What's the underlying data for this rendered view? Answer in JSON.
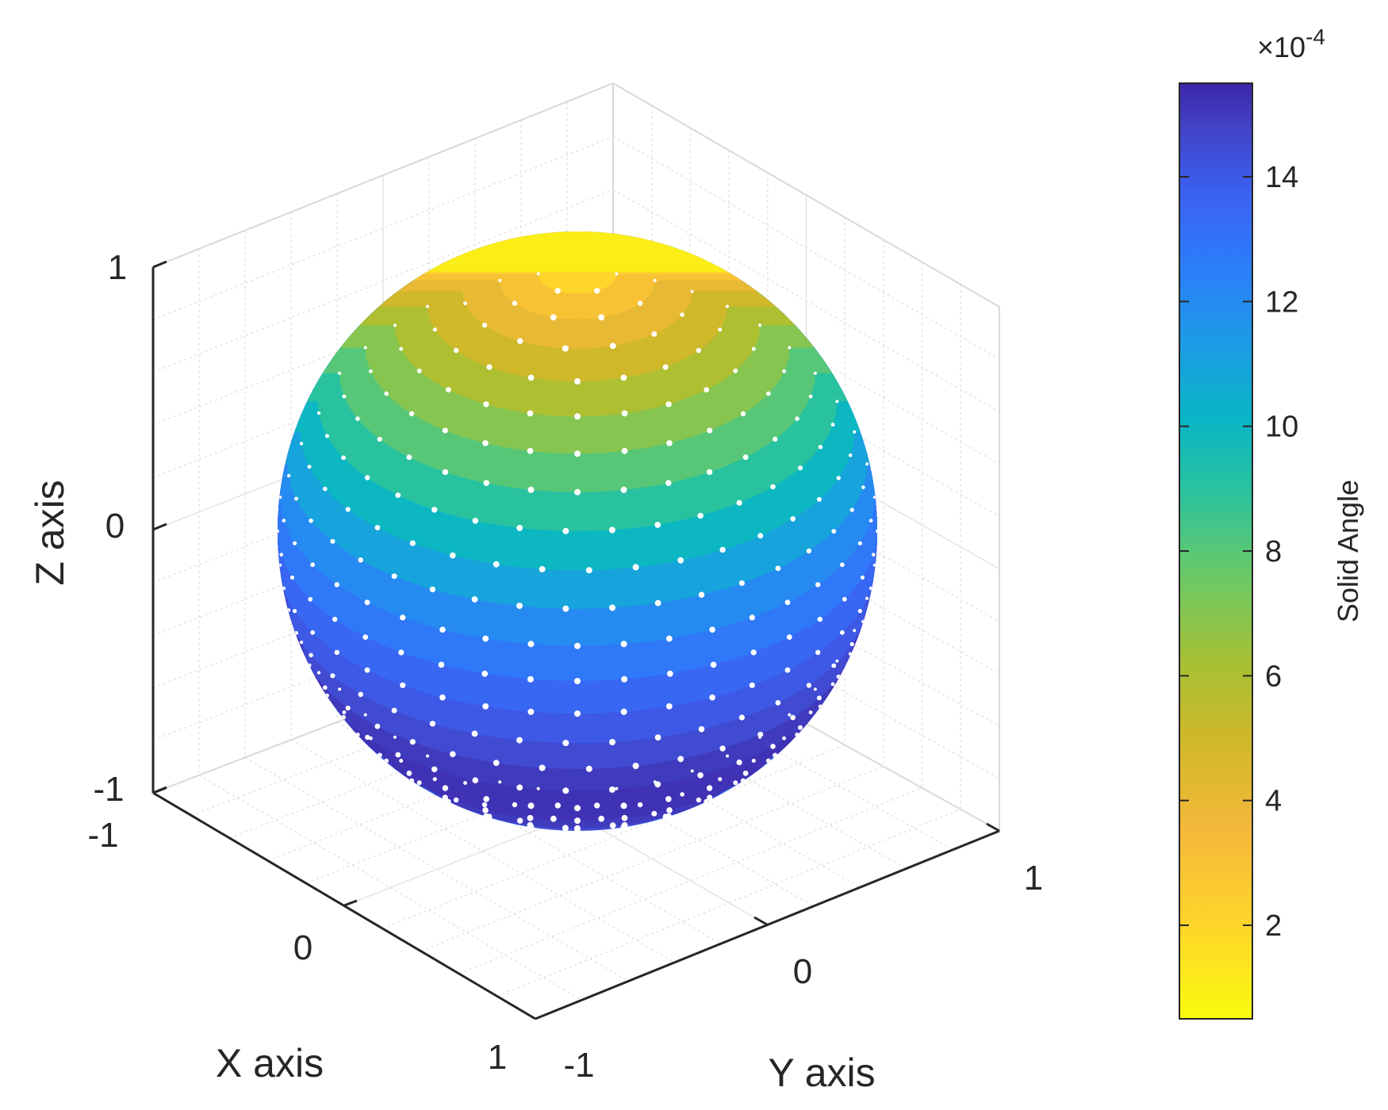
{
  "chart_data": {
    "type": "surface",
    "plot_kind": "3d sphere colored by solid angle, with white sample points",
    "view": "isometric 3D box",
    "grid": true,
    "axes": {
      "x": {
        "label": "X axis",
        "range": [
          -1,
          1
        ],
        "ticks": [
          "-1",
          "0",
          "1"
        ]
      },
      "y": {
        "label": "Y axis",
        "range": [
          -1,
          1
        ],
        "ticks": [
          "-1",
          "0",
          "1"
        ]
      },
      "z": {
        "label": "Z axis",
        "range": [
          -1,
          1
        ],
        "ticks": [
          "-1",
          "0",
          "1"
        ]
      }
    },
    "colorbar": {
      "label": "Solid Angle",
      "exponent_label": "×10",
      "exponent_value": "-4",
      "range": [
        0.5,
        15.5
      ],
      "ticks": [
        "2",
        "4",
        "6",
        "8",
        "10",
        "12",
        "14"
      ],
      "tick_values": [
        2,
        4,
        6,
        8,
        10,
        12,
        14
      ],
      "colormap": "parula",
      "orientation": "reversed (yellow at bottom, dark blue at top)"
    },
    "surface": {
      "shape": "unit sphere",
      "color_pattern": "latitude bands; smallest solid angle (yellow) at north pole, largest (dark blue) near/below equator",
      "band_values_top_to_bottom": [
        1,
        2,
        3,
        4,
        5,
        6,
        7,
        8,
        9,
        10,
        11,
        12,
        12.8,
        13.5,
        14,
        14.5,
        15,
        15.2,
        15.2,
        15,
        14.5,
        14,
        13.5,
        12.8
      ]
    },
    "points": {
      "color": "#ffffff",
      "description": "white dots on latitude rings over the sphere surface"
    }
  }
}
